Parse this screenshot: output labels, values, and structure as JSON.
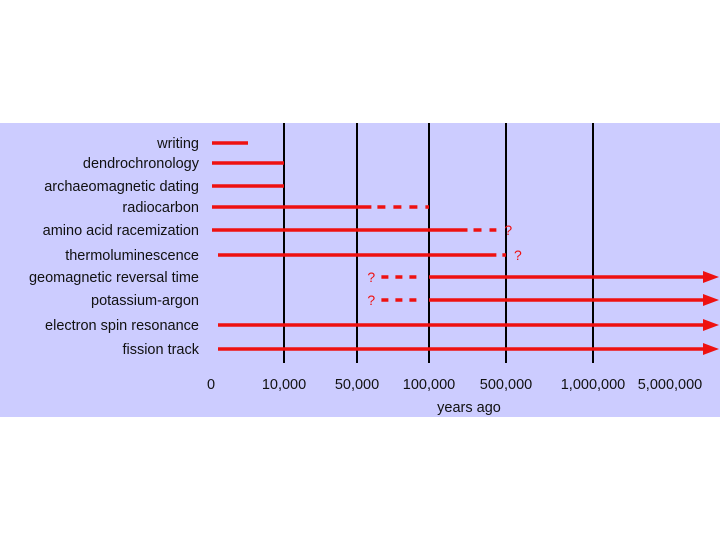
{
  "colors": {
    "panel_background": "#ccccff",
    "bar": "#ee1111",
    "gridline": "#000000",
    "text": "#111111"
  },
  "chart_data": {
    "type": "bar",
    "orientation": "horizontal",
    "title": "",
    "xlabel": "years ago",
    "ylabel": "",
    "x_ticks": [
      "0",
      "10,000",
      "50,000",
      "100,000",
      "500,000",
      "1,000,000",
      "5,000,000"
    ],
    "x_scale": "nonlinear-categorical",
    "grid": "vertical",
    "legend": "none",
    "methods": [
      {
        "label": "writing",
        "start": 0,
        "end": 5000
      },
      {
        "label": "dendrochronology",
        "start": 0,
        "end": 10000
      },
      {
        "label": "archaeomagnetic dating",
        "start": 0,
        "end": 10000
      },
      {
        "label": "radiocarbon",
        "start": 0,
        "end": 60000,
        "uncertain_end": 100000
      },
      {
        "label": "amino acid racemization",
        "start": 0,
        "end": 300000,
        "uncertain_end": 450000,
        "end_mark": "?"
      },
      {
        "label": "thermoluminescence",
        "start": 0,
        "end": 450000,
        "uncertain_end": 500000,
        "end_mark": "?"
      },
      {
        "label": "geomagnetic reversal time",
        "start": 100000,
        "uncertain_start": 60000,
        "start_mark": "?",
        "end": "5,000,000+",
        "arrow": true
      },
      {
        "label": "potassium-argon",
        "start": 100000,
        "uncertain_start": 60000,
        "start_mark": "?",
        "end": "5,000,000+",
        "arrow": true
      },
      {
        "label": "electron spin resonance",
        "start": 0,
        "end": "5,000,000+",
        "arrow": true
      },
      {
        "label": "fission track",
        "start": 0,
        "end": "5,000,000+",
        "arrow": true
      }
    ]
  }
}
